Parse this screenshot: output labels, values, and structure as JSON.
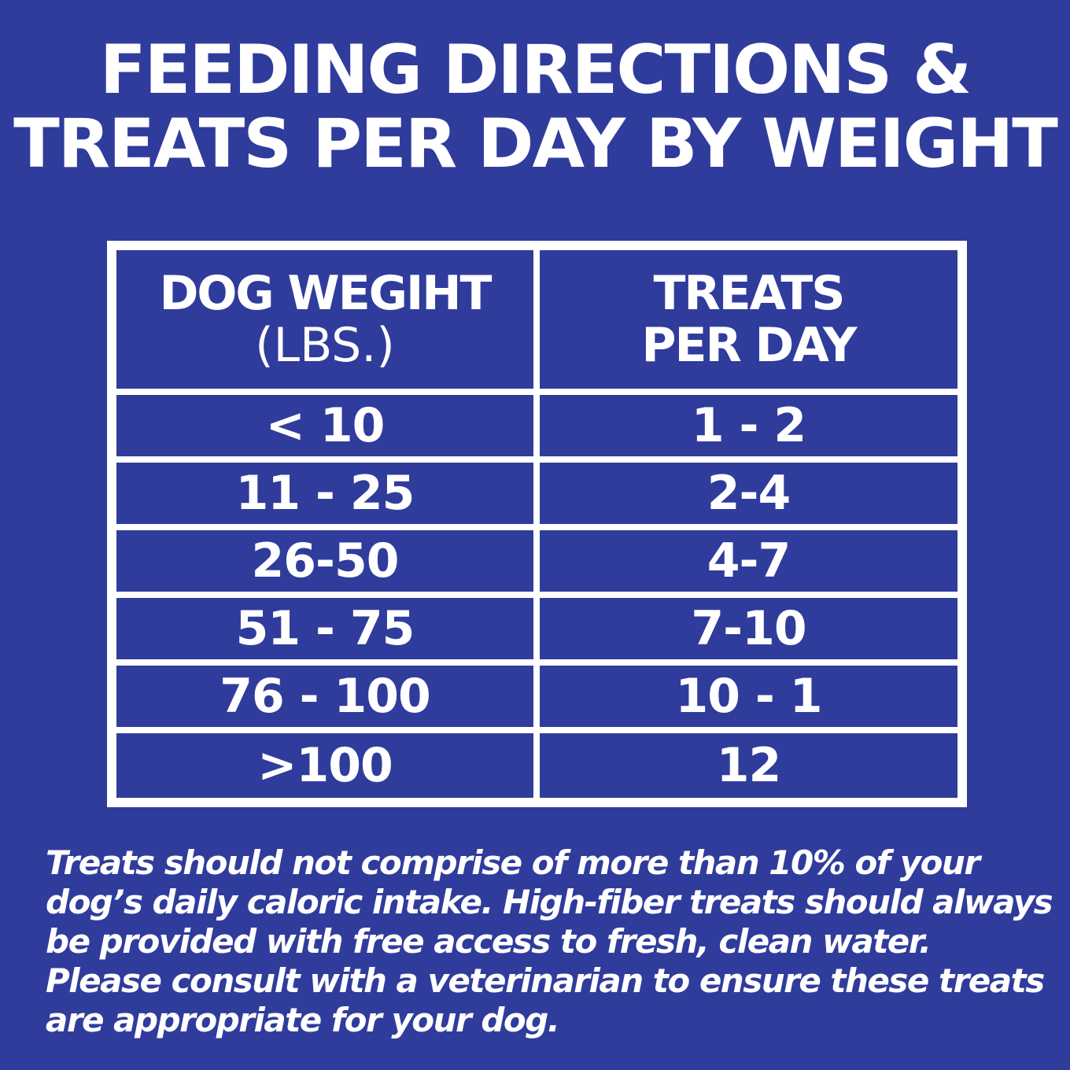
{
  "title": {
    "line1": "FEEDING DIRECTIONS &",
    "line2": "TREATS PER DAY BY WEIGHT"
  },
  "table": {
    "header": {
      "col1_main": "DOG WEGIHT",
      "col1_sub": "(LBS.)",
      "col2_line1": "TREATS",
      "col2_line2": "PER DAY"
    },
    "rows": [
      {
        "weight": "< 10",
        "treats": "1 - 2"
      },
      {
        "weight": "11 - 25",
        "treats": "2-4"
      },
      {
        "weight": "26-50",
        "treats": "4-7"
      },
      {
        "weight": "51 - 75",
        "treats": "7-10"
      },
      {
        "weight": "76 - 100",
        "treats": "10 - 1"
      },
      {
        "weight": ">100",
        "treats": "12"
      }
    ]
  },
  "note": "Treats should not comprise of more than 10% of your dog’s daily caloric intake. High-fiber treats should always be provided with free access to fresh, clean water. Please consult with a veterinarian to ensure these treats are appropriate for your dog.",
  "colors": {
    "background": "#303c9c",
    "text": "#ffffff",
    "grid": "#ffffff"
  }
}
